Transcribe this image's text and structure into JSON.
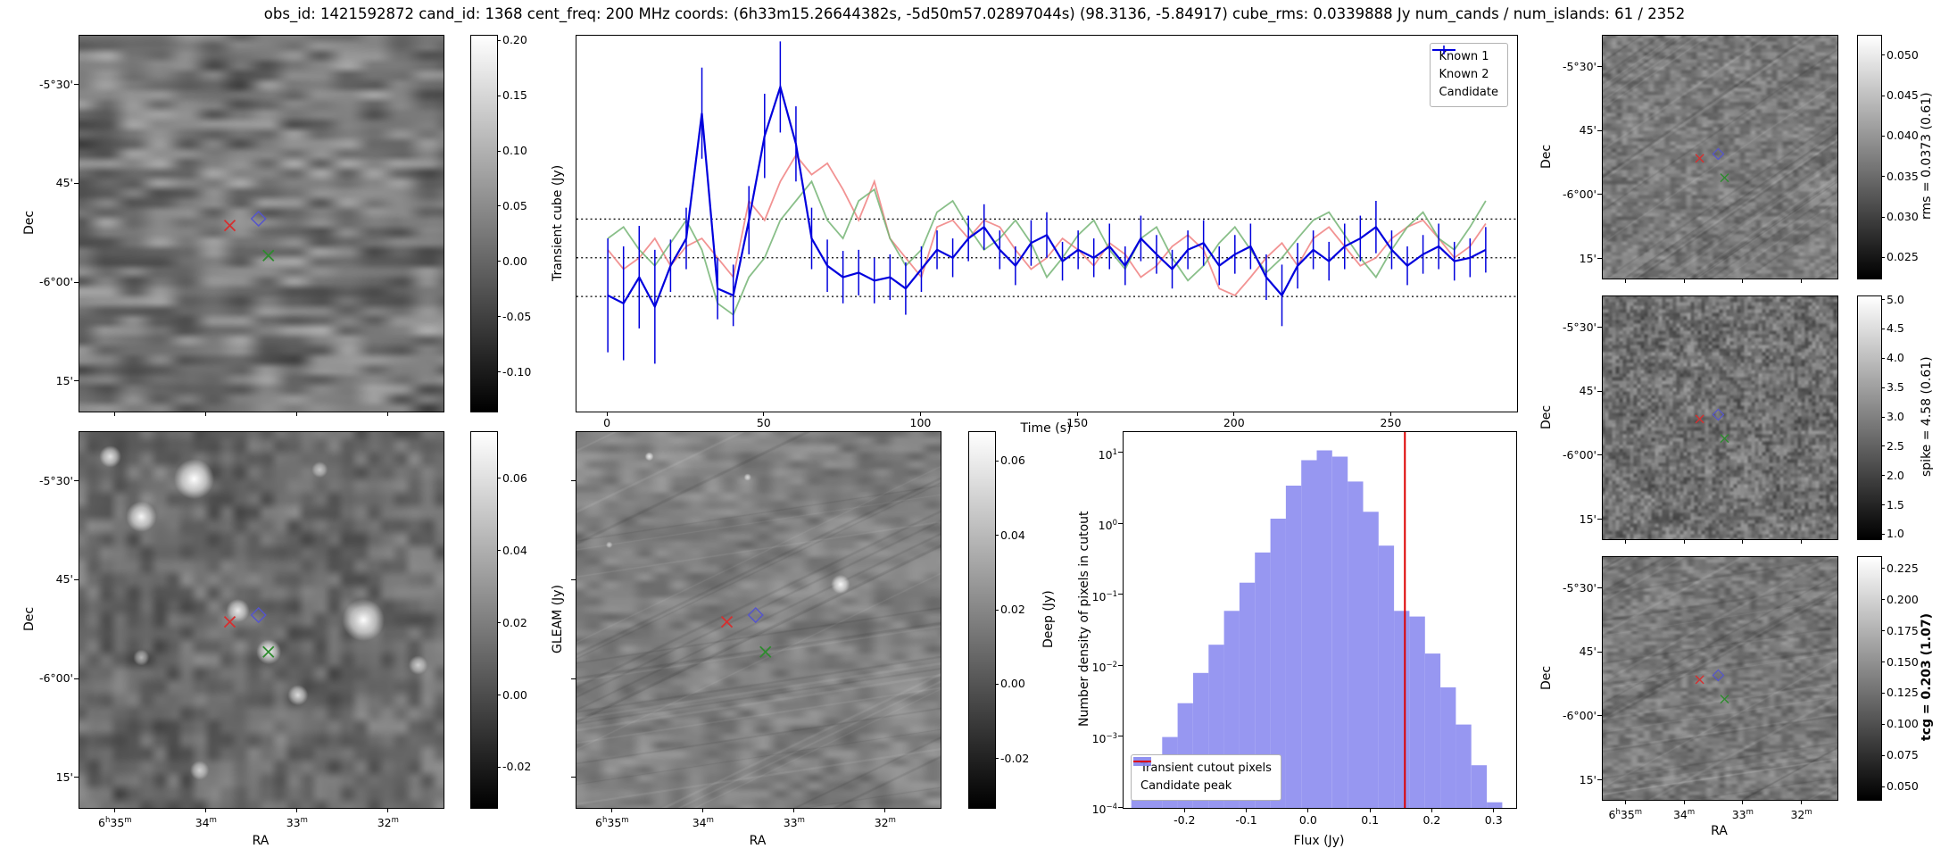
{
  "title": "obs_id: 1421592872 cand_id: 1368 cent_freq: 200 MHz coords: (6h33m15.26644382s, -5d50m57.02897044s) (98.3136, -5.84917) cube_rms: 0.0339888 Jy num_cands / num_islands: 61 / 2352",
  "colors": {
    "known1": "#f08080",
    "known2": "#74b474",
    "candidate": "#0000dd",
    "hist_fill": "#8585ee",
    "peak_line": "#dd0000",
    "hline": "#000000"
  },
  "axes": {
    "dec_label": "Dec",
    "ra_label": "RA",
    "dec_ticks": [
      {
        "label": "-5°30'",
        "pos": 0.132
      },
      {
        "label": "45'",
        "pos": 0.395
      },
      {
        "label": "-6°00'",
        "pos": 0.658
      },
      {
        "label": "15'",
        "pos": 0.921
      }
    ],
    "ra_ticks": [
      {
        "label": "6h35m",
        "pos": 0.1
      },
      {
        "label": "34m",
        "pos": 0.35
      },
      {
        "label": "33m",
        "pos": 0.6
      },
      {
        "label": "32m",
        "pos": 0.85
      }
    ]
  },
  "colorbars": {
    "transient": {
      "label": "Transient cube (Jy)",
      "ticks": [
        0.2,
        0.15,
        0.1,
        0.05,
        0.0,
        -0.05,
        -0.1
      ],
      "vmin": -0.135,
      "vmax": 0.205,
      "fmt": 2
    },
    "gleam": {
      "label": "GLEAM (Jy)",
      "ticks": [
        0.06,
        0.04,
        0.02,
        0.0,
        -0.02
      ],
      "vmin": -0.031,
      "vmax": 0.073,
      "fmt": 2
    },
    "deep": {
      "label": "Deep (Jy)",
      "ticks": [
        0.06,
        0.04,
        0.02,
        0.0,
        -0.02
      ],
      "vmin": -0.033,
      "vmax": 0.068,
      "fmt": 2
    },
    "rms": {
      "label": "rms = 0.0373 (0.61)",
      "ticks": [
        0.05,
        0.045,
        0.04,
        0.035,
        0.03,
        0.025
      ],
      "vmin": 0.0225,
      "vmax": 0.0525,
      "fmt": 3
    },
    "spike": {
      "label": "spike = 4.58 (0.61)",
      "ticks": [
        5.0,
        4.5,
        4.0,
        3.5,
        3.0,
        2.5,
        2.0,
        1.5,
        1.0
      ],
      "vmin": 0.93,
      "vmax": 5.07,
      "fmt": 1
    },
    "tcg": {
      "label": "tcg = 0.203 (1.07)",
      "ticks": [
        0.225,
        0.2,
        0.175,
        0.15,
        0.125,
        0.1,
        0.075,
        0.05
      ],
      "vmin": 0.04,
      "vmax": 0.235,
      "fmt": 3,
      "bold": true
    }
  },
  "markers": [
    {
      "name": "candidate-position",
      "shape": "x",
      "color": "#d62f2f",
      "x": 0.413,
      "y": 0.505
    },
    {
      "name": "known-source-1",
      "shape": "diamond",
      "color": "#5555cc",
      "x": 0.492,
      "y": 0.487
    },
    {
      "name": "known-source-2",
      "shape": "x",
      "color": "#2e8b2e",
      "x": 0.519,
      "y": 0.585
    }
  ],
  "chart_data": [
    {
      "type": "line",
      "name": "lightcurve",
      "xlabel": "Time (s)",
      "ylabel": "Transient cube (Jy)",
      "xlim": [
        -10,
        290
      ],
      "ylim": [
        -0.135,
        0.195
      ],
      "x_ticks": [
        0,
        50,
        100,
        150,
        200,
        250
      ],
      "hlines": [
        0.0339888,
        0.0,
        -0.0339888
      ],
      "legend_position": "upper right",
      "x": [
        0,
        5,
        10,
        15,
        20,
        25,
        30,
        35,
        40,
        45,
        50,
        55,
        60,
        65,
        70,
        75,
        80,
        85,
        90,
        95,
        100,
        105,
        110,
        115,
        120,
        125,
        130,
        135,
        140,
        145,
        150,
        155,
        160,
        165,
        170,
        175,
        180,
        185,
        190,
        195,
        200,
        205,
        210,
        215,
        220,
        225,
        230,
        235,
        240,
        245,
        250,
        255,
        260,
        265,
        270,
        275,
        280
      ],
      "series": [
        {
          "name": "Known 1",
          "values": [
            0.007,
            -0.01,
            0.0,
            0.017,
            -0.007,
            0.01,
            0.017,
            0.0,
            -0.017,
            0.05,
            0.033,
            0.067,
            0.09,
            0.073,
            0.083,
            0.06,
            0.033,
            0.067,
            0.017,
            0.0,
            -0.017,
            0.027,
            0.033,
            0.017,
            0.033,
            0.027,
            0.007,
            -0.01,
            0.0,
            0.017,
            0.007,
            -0.007,
            0.013,
            0.003,
            -0.017,
            -0.007,
            0.01,
            0.02,
            0.007,
            -0.027,
            -0.033,
            -0.017,
            0.0,
            0.013,
            -0.007,
            0.017,
            0.027,
            0.01,
            -0.007,
            0.0,
            0.017,
            0.027,
            0.033,
            0.017,
            0.0,
            0.01,
            0.03
          ]
        },
        {
          "name": "Known 2",
          "values": [
            0.017,
            0.027,
            0.007,
            -0.007,
            0.013,
            0.033,
            0.007,
            -0.04,
            -0.05,
            -0.017,
            0.0,
            0.033,
            0.05,
            0.067,
            0.033,
            0.017,
            0.05,
            0.06,
            0.017,
            -0.007,
            0.007,
            0.04,
            0.05,
            0.027,
            0.007,
            0.017,
            0.033,
            0.013,
            -0.017,
            0.0,
            0.02,
            0.033,
            0.007,
            -0.01,
            0.017,
            0.027,
            0.0,
            -0.02,
            -0.007,
            0.013,
            0.027,
            0.007,
            -0.013,
            0.0,
            0.017,
            0.033,
            0.04,
            0.02,
            0.0,
            -0.017,
            0.007,
            0.027,
            0.04,
            0.017,
            0.007,
            0.027,
            0.05
          ]
        },
        {
          "name": "Candidate",
          "values": [
            -0.033,
            -0.04,
            -0.017,
            -0.043,
            -0.007,
            0.017,
            0.127,
            -0.027,
            -0.033,
            0.033,
            0.107,
            0.15,
            0.1,
            0.017,
            -0.007,
            -0.017,
            -0.013,
            -0.02,
            -0.017,
            -0.027,
            -0.01,
            0.007,
            0.0,
            0.017,
            0.027,
            0.007,
            -0.007,
            0.013,
            0.02,
            -0.003,
            0.007,
            0.0,
            0.01,
            -0.007,
            0.017,
            0.003,
            -0.01,
            0.007,
            0.013,
            -0.007,
            0.003,
            0.01,
            -0.017,
            -0.033,
            -0.007,
            0.007,
            -0.003,
            0.01,
            0.017,
            0.027,
            0.007,
            -0.007,
            0.003,
            0.01,
            -0.003,
            0.0,
            0.007
          ],
          "errors": [
            0.05,
            0.05,
            0.045,
            0.05,
            0.023,
            0.027,
            0.04,
            0.027,
            0.027,
            0.03,
            0.037,
            0.04,
            0.033,
            0.027,
            0.023,
            0.023,
            0.02,
            0.02,
            0.02,
            0.023,
            0.02,
            0.017,
            0.017,
            0.02,
            0.02,
            0.017,
            0.017,
            0.02,
            0.02,
            0.017,
            0.017,
            0.017,
            0.02,
            0.017,
            0.02,
            0.017,
            0.017,
            0.017,
            0.02,
            0.017,
            0.017,
            0.02,
            0.02,
            0.027,
            0.02,
            0.017,
            0.017,
            0.02,
            0.02,
            0.023,
            0.017,
            0.017,
            0.017,
            0.02,
            0.017,
            0.017,
            0.02
          ]
        }
      ]
    },
    {
      "type": "bar",
      "name": "flux-histogram",
      "xlabel": "Flux (Jy)",
      "ylabel": "Number density of pixels in cutout",
      "xlim": [
        -0.3,
        0.335
      ],
      "x_ticks": [
        -0.2,
        -0.1,
        0.0,
        0.1,
        0.2,
        0.3
      ],
      "ylog_exponents": [
        1,
        0,
        -1,
        -2,
        -3,
        -4
      ],
      "ylim_log": [
        -4,
        1.3
      ],
      "bin_width": 0.025,
      "bin_centers": [
        -0.275,
        -0.25,
        -0.225,
        -0.2,
        -0.175,
        -0.15,
        -0.125,
        -0.1,
        -0.075,
        -0.05,
        -0.025,
        0.0,
        0.025,
        0.05,
        0.075,
        0.1,
        0.125,
        0.15,
        0.175,
        0.2,
        0.225,
        0.25,
        0.275,
        0.3
      ],
      "densities": [
        0.00015,
        0.0003,
        0.001,
        0.003,
        0.008,
        0.02,
        0.06,
        0.15,
        0.4,
        1.2,
        3.5,
        8.0,
        11.0,
        9.0,
        4.0,
        1.5,
        0.5,
        0.06,
        0.05,
        0.015,
        0.005,
        0.0015,
        0.0004,
        0.00012
      ],
      "candidate_peak": 0.155,
      "legend": [
        "Transient cutout pixels",
        "Candidate peak"
      ],
      "legend_position": "lower left"
    }
  ]
}
